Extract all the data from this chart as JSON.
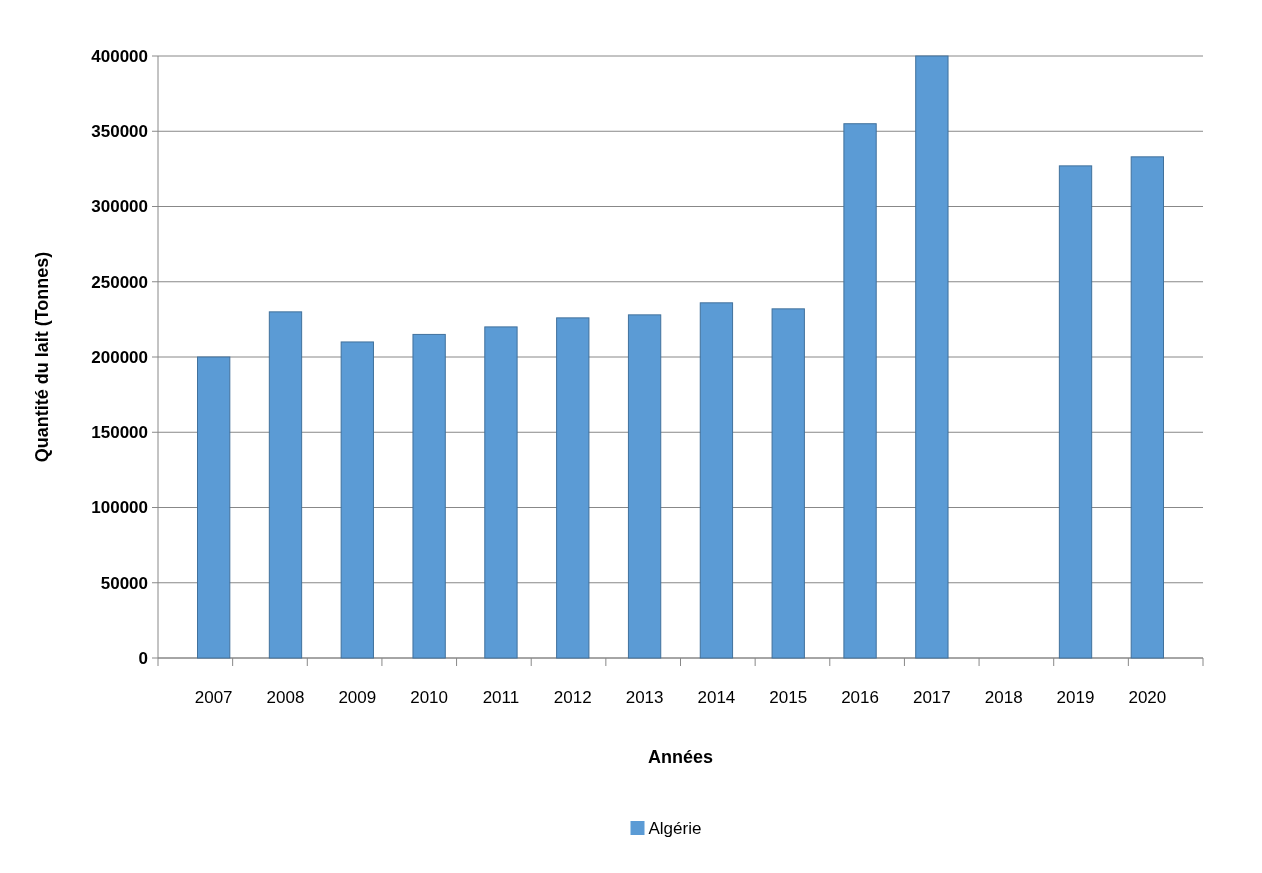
{
  "chart_data": {
    "type": "bar",
    "xlabel": "Années",
    "ylabel": "Quantité du lait (Tonnes)",
    "categories": [
      "2007",
      "2008",
      "2009",
      "2010",
      "2011",
      "2012",
      "2013",
      "2014",
      "2015",
      "2016",
      "2017",
      "2018",
      "2019",
      "2020"
    ],
    "series": [
      {
        "name": "Algérie",
        "color": "#5b9bd5",
        "values": [
          200000,
          230000,
          210000,
          215000,
          220000,
          226000,
          228000,
          236000,
          232000,
          355000,
          400000,
          null,
          327000,
          333000
        ]
      }
    ],
    "ylim": [
      0,
      400000
    ],
    "yticks": [
      0,
      50000,
      100000,
      150000,
      200000,
      250000,
      300000,
      350000,
      400000
    ],
    "grid": "y",
    "legend": "bottom"
  }
}
